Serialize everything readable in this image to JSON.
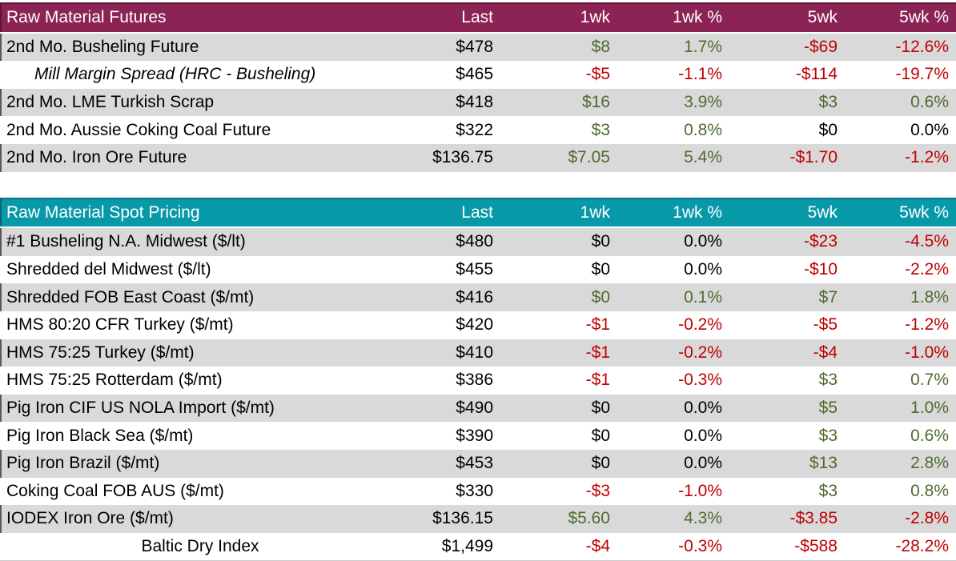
{
  "colors": {
    "futures_header_bg": "#8C2355",
    "futures_header_edge": "#5E1637",
    "spot_header_bg": "#0899A9",
    "spot_header_edge": "#067380",
    "row_stripe_bg": "#D9D9D9",
    "positive_text": "#4F6B2F",
    "negative_text": "#C00000",
    "neutral_text": "#000000",
    "header_text": "#FFFFFF"
  },
  "chart_data": [
    {
      "type": "table",
      "title": "Raw Material Futures",
      "columns": [
        "Last",
        "1wk",
        "1wk %",
        "5wk",
        "5wk %"
      ],
      "rows": [
        {
          "label": "2nd Mo. Busheling Future",
          "variant": "normal",
          "values": [
            "$478",
            "$8",
            "1.7%",
            "-$69",
            "-12.6%"
          ],
          "tones": [
            "neutral",
            "positive",
            "positive",
            "negative",
            "negative"
          ]
        },
        {
          "label": "Mill Margin Spread (HRC - Busheling)",
          "variant": "italic-indent",
          "values": [
            "$465",
            "-$5",
            "-1.1%",
            "-$114",
            "-19.7%"
          ],
          "tones": [
            "neutral",
            "negative",
            "negative",
            "negative",
            "negative"
          ]
        },
        {
          "label": "2nd Mo. LME Turkish Scrap",
          "variant": "normal",
          "values": [
            "$418",
            "$16",
            "3.9%",
            "$3",
            "0.6%"
          ],
          "tones": [
            "neutral",
            "positive",
            "positive",
            "positive",
            "positive"
          ]
        },
        {
          "label": "2nd Mo. Aussie Coking Coal Future",
          "variant": "normal",
          "values": [
            "$322",
            "$3",
            "0.8%",
            "$0",
            "0.0%"
          ],
          "tones": [
            "neutral",
            "positive",
            "positive",
            "neutral",
            "neutral"
          ]
        },
        {
          "label": "2nd Mo. Iron Ore Future",
          "variant": "normal",
          "values": [
            "$136.75",
            "$7.05",
            "5.4%",
            "-$1.70",
            "-1.2%"
          ],
          "tones": [
            "neutral",
            "positive",
            "positive",
            "negative",
            "negative"
          ]
        }
      ]
    },
    {
      "type": "table",
      "title": "Raw Material Spot Pricing",
      "columns": [
        "Last",
        "1wk",
        "1wk %",
        "5wk",
        "5wk %"
      ],
      "rows": [
        {
          "label": "#1 Busheling N.A. Midwest ($/lt)",
          "variant": "normal",
          "values": [
            "$480",
            "$0",
            "0.0%",
            "-$23",
            "-4.5%"
          ],
          "tones": [
            "neutral",
            "neutral",
            "neutral",
            "negative",
            "negative"
          ]
        },
        {
          "label": "Shredded del  Midwest ($/lt)",
          "variant": "normal",
          "values": [
            "$455",
            "$0",
            "0.0%",
            "-$10",
            "-2.2%"
          ],
          "tones": [
            "neutral",
            "neutral",
            "neutral",
            "negative",
            "negative"
          ]
        },
        {
          "label": "Shredded FOB East Coast ($/mt)",
          "variant": "normal",
          "values": [
            "$416",
            "$0",
            "0.1%",
            "$7",
            "1.8%"
          ],
          "tones": [
            "neutral",
            "positive",
            "positive",
            "positive",
            "positive"
          ]
        },
        {
          "label": "HMS 80:20 CFR Turkey ($/mt)",
          "variant": "normal",
          "values": [
            "$420",
            "-$1",
            "-0.2%",
            "-$5",
            "-1.2%"
          ],
          "tones": [
            "neutral",
            "negative",
            "negative",
            "negative",
            "negative"
          ]
        },
        {
          "label": "HMS 75:25 Turkey ($/mt)",
          "variant": "normal",
          "values": [
            "$410",
            "-$1",
            "-0.2%",
            "-$4",
            "-1.0%"
          ],
          "tones": [
            "neutral",
            "negative",
            "negative",
            "negative",
            "negative"
          ]
        },
        {
          "label": "HMS 75:25 Rotterdam ($/mt)",
          "variant": "normal",
          "values": [
            "$386",
            "-$1",
            "-0.3%",
            "$3",
            "0.7%"
          ],
          "tones": [
            "neutral",
            "negative",
            "negative",
            "positive",
            "positive"
          ]
        },
        {
          "label": "Pig Iron CIF US NOLA Import ($/mt)",
          "variant": "normal",
          "values": [
            "$490",
            "$0",
            "0.0%",
            "$5",
            "1.0%"
          ],
          "tones": [
            "neutral",
            "neutral",
            "neutral",
            "positive",
            "positive"
          ]
        },
        {
          "label": "Pig Iron Black Sea ($/mt)",
          "variant": "normal",
          "values": [
            "$390",
            "$0",
            "0.0%",
            "$3",
            "0.6%"
          ],
          "tones": [
            "neutral",
            "neutral",
            "neutral",
            "positive",
            "positive"
          ]
        },
        {
          "label": "Pig Iron Brazil ($/mt)",
          "variant": "normal",
          "values": [
            "$453",
            "$0",
            "0.0%",
            "$13",
            "2.8%"
          ],
          "tones": [
            "neutral",
            "neutral",
            "neutral",
            "positive",
            "positive"
          ]
        },
        {
          "label": "Coking Coal FOB AUS ($/mt)",
          "variant": "normal",
          "values": [
            "$330",
            "-$3",
            "-1.0%",
            "$3",
            "0.8%"
          ],
          "tones": [
            "neutral",
            "negative",
            "negative",
            "positive",
            "positive"
          ]
        },
        {
          "label": "IODEX  Iron Ore ($/mt)",
          "variant": "normal",
          "values": [
            "$136.15",
            "$5.60",
            "4.3%",
            "-$3.85",
            "-2.8%"
          ],
          "tones": [
            "neutral",
            "positive",
            "positive",
            "negative",
            "negative"
          ]
        },
        {
          "label": "Baltic Dry Index",
          "variant": "center",
          "values": [
            "$1,499",
            "-$4",
            "-0.3%",
            "-$588",
            "-28.2%"
          ],
          "tones": [
            "neutral",
            "negative",
            "negative",
            "negative",
            "negative"
          ]
        }
      ]
    }
  ]
}
